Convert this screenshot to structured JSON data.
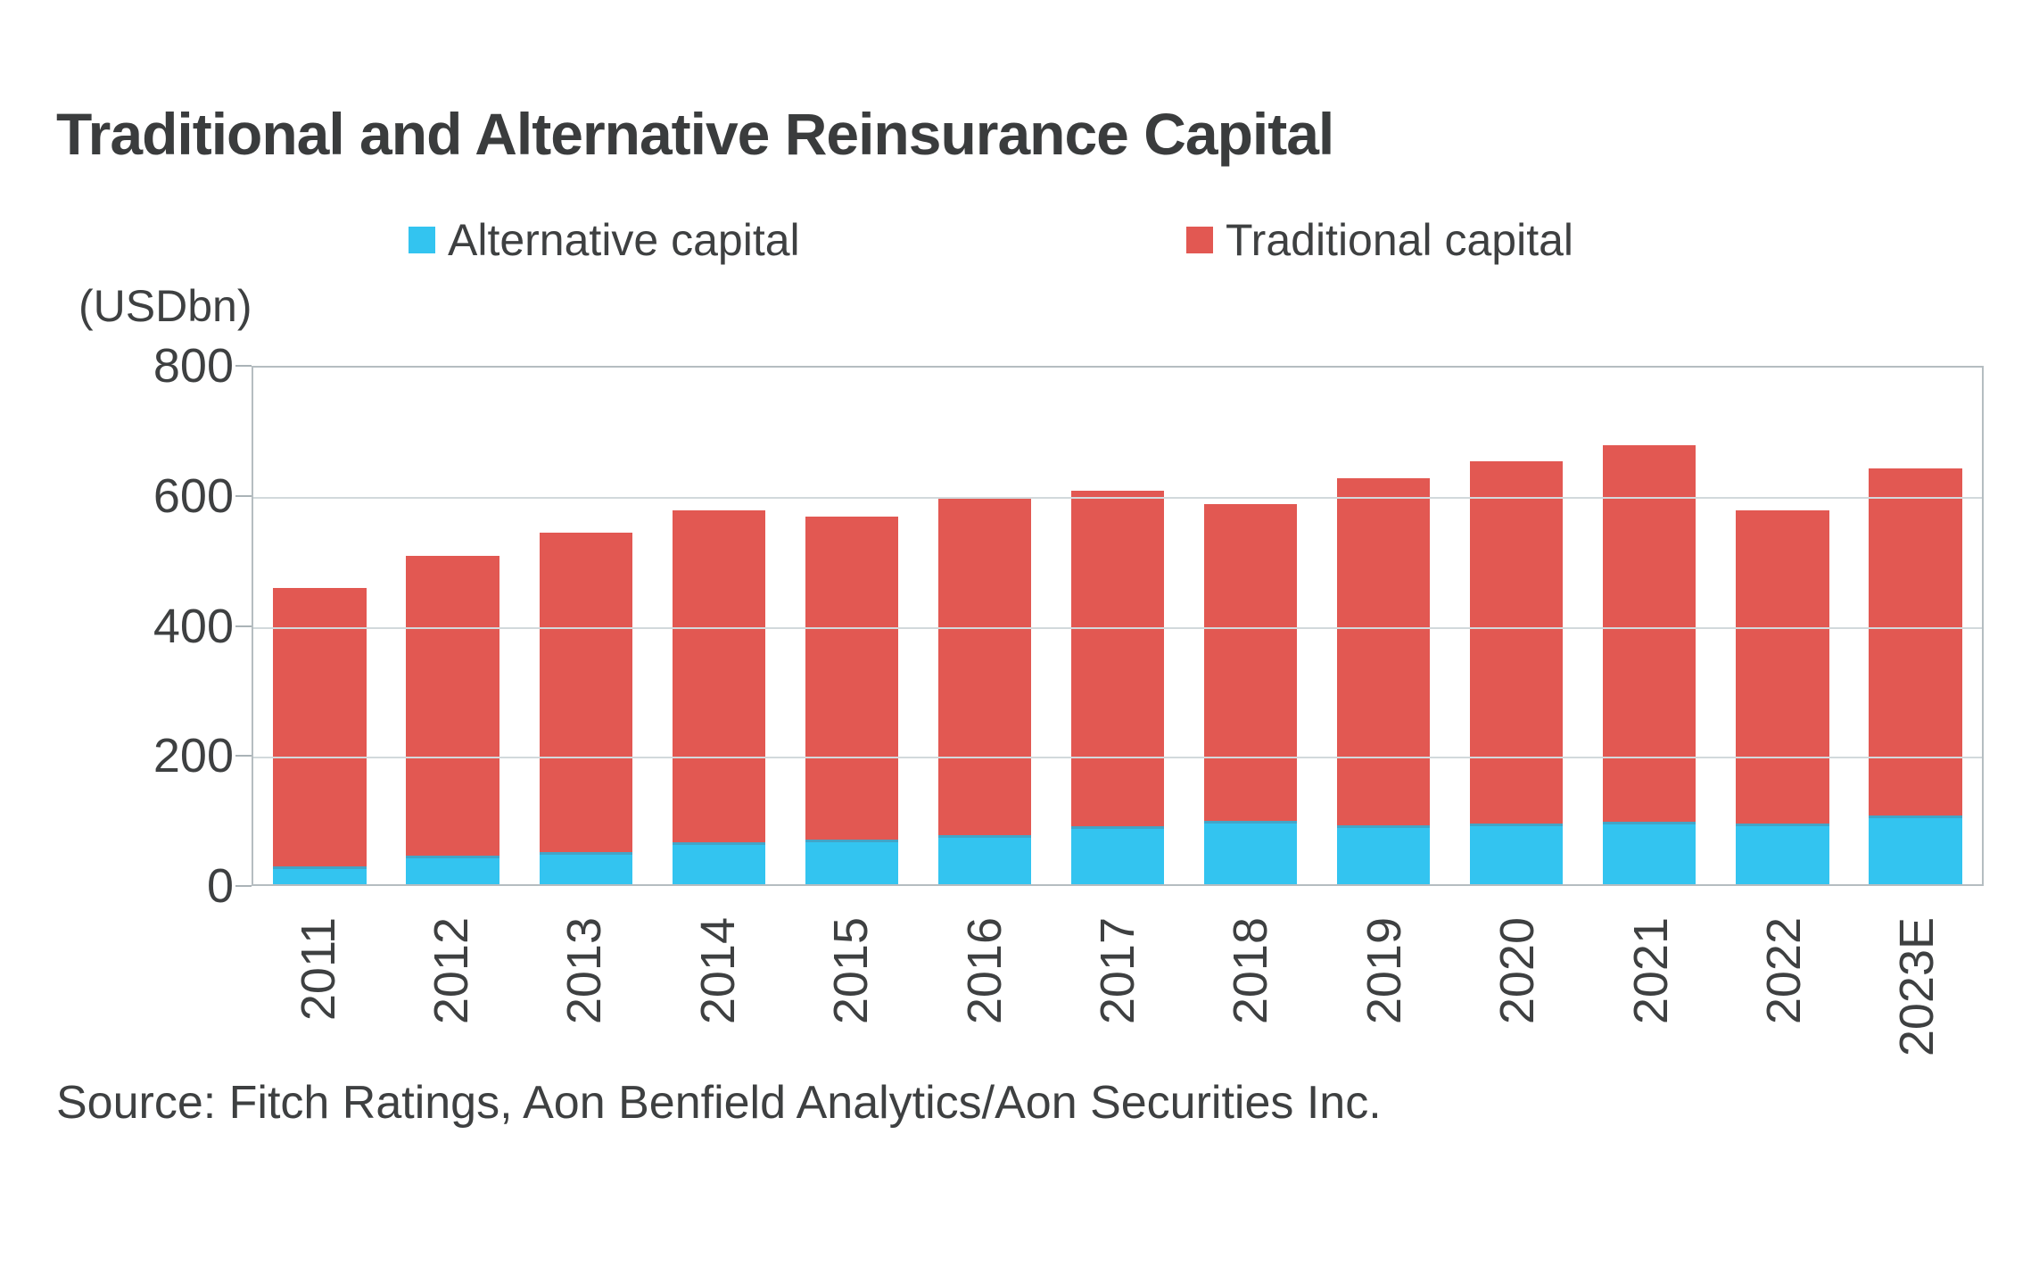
{
  "title": "Traditional and Alternative Reinsurance Capital",
  "legend": {
    "items": [
      {
        "label": "Alternative capital",
        "color": "#33c4f0"
      },
      {
        "label": "Traditional capital",
        "color": "#e25852"
      }
    ]
  },
  "y_axis": {
    "title": "(USDbn)",
    "ticks": [
      0,
      200,
      400,
      600,
      800
    ],
    "max": 800
  },
  "source": "Source: Fitch Ratings, Aon Benfield Analytics/Aon Securities Inc.",
  "chart_data": {
    "type": "bar",
    "stacked": true,
    "title": "Traditional and Alternative Reinsurance Capital",
    "xlabel": "",
    "ylabel": "(USDbn)",
    "ylim": [
      0,
      800
    ],
    "grid": true,
    "legend_position": "top",
    "categories": [
      "2011",
      "2012",
      "2013",
      "2014",
      "2015",
      "2016",
      "2017",
      "2018",
      "2019",
      "2020",
      "2021",
      "2022",
      "2023E"
    ],
    "series": [
      {
        "name": "Alternative capital",
        "color": "#33c4f0",
        "values": [
          28,
          44,
          50,
          64,
          69,
          75,
          89,
          97,
          91,
          94,
          96,
          93,
          105
        ]
      },
      {
        "name": "Traditional capital",
        "color": "#e25852",
        "values": [
          427,
          461,
          490,
          511,
          496,
          520,
          516,
          488,
          534,
          556,
          579,
          482,
          535
        ]
      }
    ],
    "totals": [
      455,
      505,
      540,
      575,
      565,
      595,
      605,
      585,
      625,
      650,
      675,
      575,
      640
    ]
  }
}
